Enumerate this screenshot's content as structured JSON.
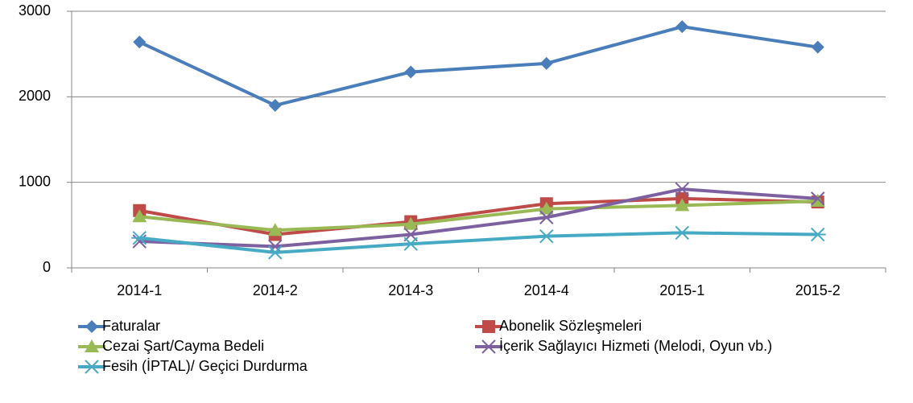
{
  "chart_data": {
    "type": "line",
    "categories": [
      "2014-1",
      "2014-2",
      "2014-3",
      "2014-4",
      "2015-1",
      "2015-2"
    ],
    "series": [
      {
        "name": "Faturalar",
        "color": "#4a7ebb",
        "marker": "diamond",
        "values": [
          2640,
          1900,
          2290,
          2390,
          2820,
          2580
        ]
      },
      {
        "name": "Abonelik Sözleşmeleri",
        "color": "#be4b48",
        "marker": "square",
        "values": [
          670,
          390,
          540,
          750,
          810,
          770
        ]
      },
      {
        "name": "Cezai Şart/Cayma Bedeli",
        "color": "#98b954",
        "marker": "triangle",
        "values": [
          600,
          440,
          510,
          690,
          730,
          780
        ]
      },
      {
        "name": "İçerik Sağlayıcı Hizmeti (Melodi, Oyun vb.)",
        "color": "#7d60a0",
        "marker": "x",
        "values": [
          310,
          250,
          390,
          590,
          920,
          810
        ]
      },
      {
        "name": "Fesih (İPTAL)/ Geçici Durdurma",
        "color": "#46aac5",
        "marker": "star",
        "values": [
          350,
          180,
          280,
          370,
          410,
          390
        ]
      }
    ],
    "ylim": [
      0,
      3000
    ],
    "yticks": [
      0,
      1000,
      2000,
      3000
    ],
    "grid": true,
    "legend": "bottom"
  }
}
